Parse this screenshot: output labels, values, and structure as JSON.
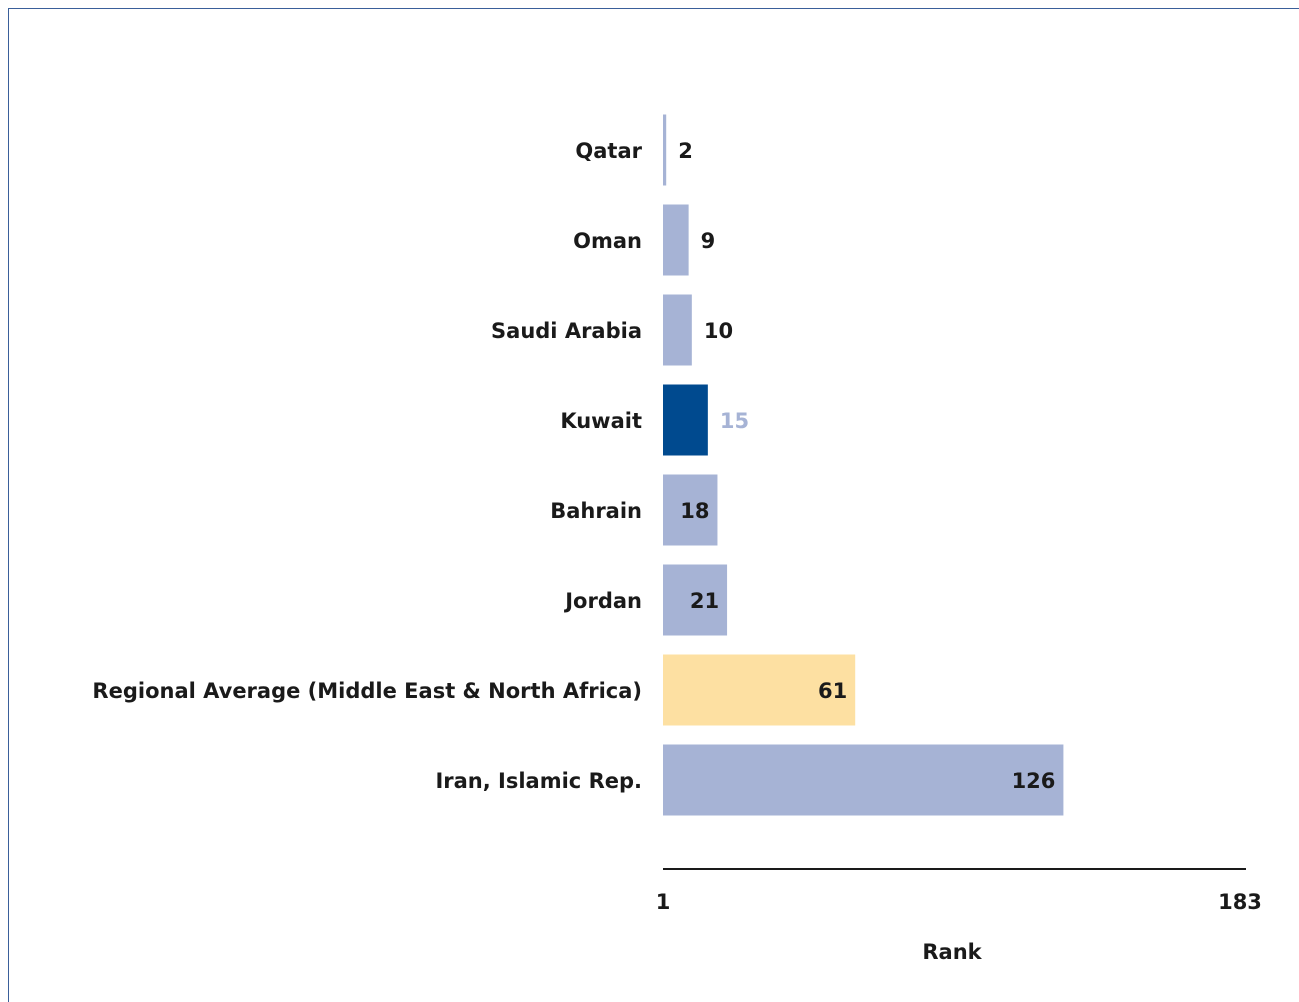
{
  "chart_data": {
    "type": "bar",
    "orientation": "horizontal",
    "categories": [
      "Qatar",
      "Oman",
      "Saudi Arabia",
      "Kuwait",
      "Bahrain",
      "Jordan",
      "Regional Average (Middle East & North Africa)",
      "Iran, Islamic Rep."
    ],
    "values": [
      2,
      9,
      10,
      15,
      18,
      21,
      61,
      126
    ],
    "value_labels": [
      "2",
      "9",
      "10",
      "15",
      "18",
      "21",
      "61",
      "126"
    ],
    "xlim": [
      1,
      183
    ],
    "ticks": [
      "1",
      "183"
    ],
    "xlabel": "Rank",
    "colors": {
      "default": "#a6b3d5",
      "highlight": "#004a8f",
      "average": "#fde0a2",
      "label_dark": "#1a1a1a",
      "label_highlight": "#a6b3d5"
    },
    "highlight_index": 3,
    "average_index": 6,
    "grid": false,
    "legend": "none"
  }
}
